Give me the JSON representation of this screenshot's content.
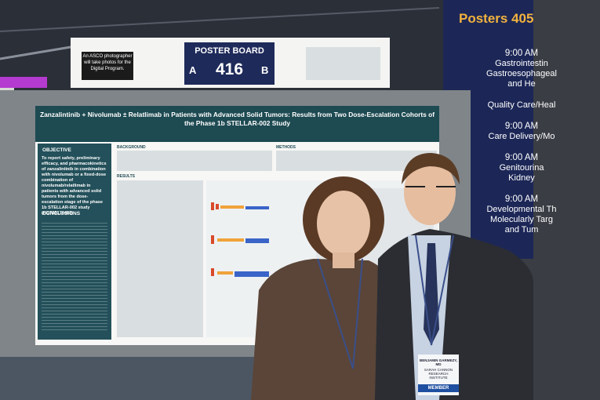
{
  "banner": {
    "title": "Posters 405",
    "schedule": [
      {
        "time": "9:00 AM",
        "lines": [
          "Gastrointestin",
          "Gastroesophageal",
          "and He"
        ]
      },
      {
        "lines": [
          "Quality Care/Heal"
        ]
      },
      {
        "time": "9:00 AM",
        "lines": [
          "Care Delivery/Mo"
        ]
      },
      {
        "time": "9:00 AM",
        "lines": [
          "Genitourina",
          "Kidney"
        ]
      },
      {
        "time": "9:00 AM",
        "lines": [
          "Developmental Th",
          "Molecularly Targ",
          "and Tum"
        ]
      }
    ]
  },
  "sign": {
    "photographer_note": "An ASCO photographer will take photos for the Digital Program.",
    "board_label": "POSTER BOARD",
    "side_a": "A",
    "board_number": "416",
    "side_b": "B"
  },
  "poster": {
    "title": "Zanzalintinib + Nivolumab ± Relatlimab in Patients with Advanced Solid Tumors: Results from Two Dose-Escalation Cohorts of the Phase 1b STELLAR-002 Study",
    "objective_heading": "OBJECTIVE",
    "objective": "To report safety, preliminary efficacy, and pharmacokinetics of zanzalintinib in combination with nivolumab or a fixed-dose combination of nivolumab/relatlimab in patients with advanced solid tumors from the dose-escalation stage of the phase 1b STELLAR-002 study (NCT05176483)",
    "conclusions_heading": "CONCLUSIONS",
    "background_heading": "BACKGROUND",
    "methods_heading": "METHODS",
    "results_heading": "RESULTS"
  },
  "badge": {
    "name": "BENJAMIN GARMEZY, MD",
    "org": "SARAH CANNON RESEARCH INSTITUTE",
    "member": "MEMBER"
  }
}
